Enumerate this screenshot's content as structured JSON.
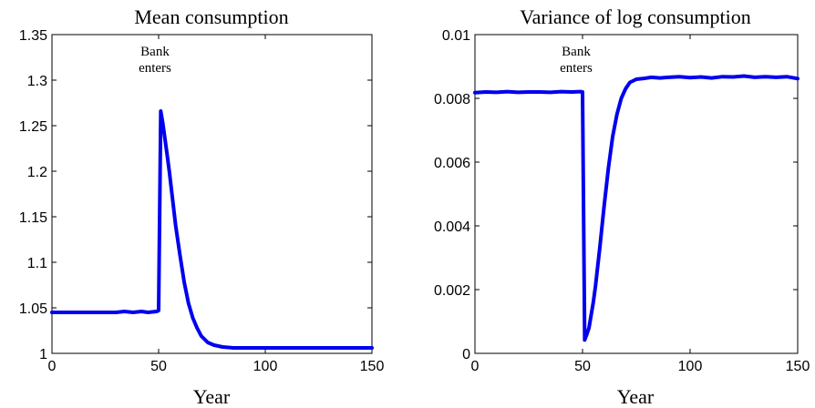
{
  "chart_data": [
    {
      "type": "line",
      "title": "Mean consumption",
      "xlabel": "Year",
      "ylabel": "",
      "xlim": [
        0,
        150
      ],
      "ylim": [
        1,
        1.35
      ],
      "xticks": [
        "0",
        "50",
        "100",
        "150"
      ],
      "yticks": [
        "1",
        "1.05",
        "1.1",
        "1.15",
        "1.2",
        "1.25",
        "1.3",
        "1.35"
      ],
      "grid": false,
      "color": "#0000ee",
      "annotation": {
        "lines": [
          "Bank",
          "enters"
        ],
        "x": 50
      },
      "series": [
        {
          "x": [
            0,
            10,
            20,
            30,
            34,
            38,
            42,
            45,
            49,
            50,
            51,
            52,
            53,
            54,
            55,
            56,
            57,
            58,
            60,
            62,
            64,
            66,
            68,
            70,
            73,
            76,
            80,
            85,
            90,
            100,
            110,
            120,
            130,
            140,
            150
          ],
          "values": [
            1.045,
            1.045,
            1.045,
            1.045,
            1.046,
            1.045,
            1.046,
            1.045,
            1.046,
            1.047,
            1.266,
            1.252,
            1.235,
            1.218,
            1.2,
            1.18,
            1.16,
            1.14,
            1.108,
            1.078,
            1.055,
            1.039,
            1.028,
            1.019,
            1.012,
            1.009,
            1.007,
            1.006,
            1.006,
            1.006,
            1.006,
            1.006,
            1.006,
            1.006,
            1.006
          ]
        }
      ]
    },
    {
      "type": "line",
      "title": "Variance of log consumption",
      "xlabel": "Year",
      "ylabel": "",
      "xlim": [
        0,
        150
      ],
      "ylim": [
        0,
        0.01
      ],
      "xticks": [
        "0",
        "50",
        "100",
        "150"
      ],
      "yticks": [
        "0",
        "0.002",
        "0.004",
        "0.006",
        "0.008",
        "0.01"
      ],
      "grid": false,
      "color": "#0000ee",
      "annotation": {
        "lines": [
          "Bank",
          "enters"
        ],
        "x": 50
      },
      "series": [
        {
          "x": [
            0,
            5,
            10,
            15,
            20,
            25,
            30,
            35,
            40,
            45,
            49,
            50,
            51,
            52,
            53,
            54,
            55,
            56,
            58,
            60,
            62,
            64,
            66,
            68,
            70,
            72,
            75,
            78,
            82,
            86,
            90,
            95,
            100,
            105,
            110,
            115,
            120,
            125,
            130,
            135,
            140,
            145,
            150
          ],
          "values": [
            0.00818,
            0.0082,
            0.00819,
            0.00821,
            0.00819,
            0.0082,
            0.0082,
            0.00819,
            0.00821,
            0.0082,
            0.00821,
            0.0082,
            0.00042,
            0.0006,
            0.0008,
            0.0012,
            0.0016,
            0.0021,
            0.0033,
            0.0046,
            0.0058,
            0.0068,
            0.0075,
            0.008,
            0.0083,
            0.0085,
            0.0086,
            0.00862,
            0.00866,
            0.00864,
            0.00866,
            0.00868,
            0.00865,
            0.00867,
            0.00864,
            0.00868,
            0.00867,
            0.0087,
            0.00866,
            0.00868,
            0.00866,
            0.00868,
            0.00862
          ]
        }
      ]
    }
  ]
}
